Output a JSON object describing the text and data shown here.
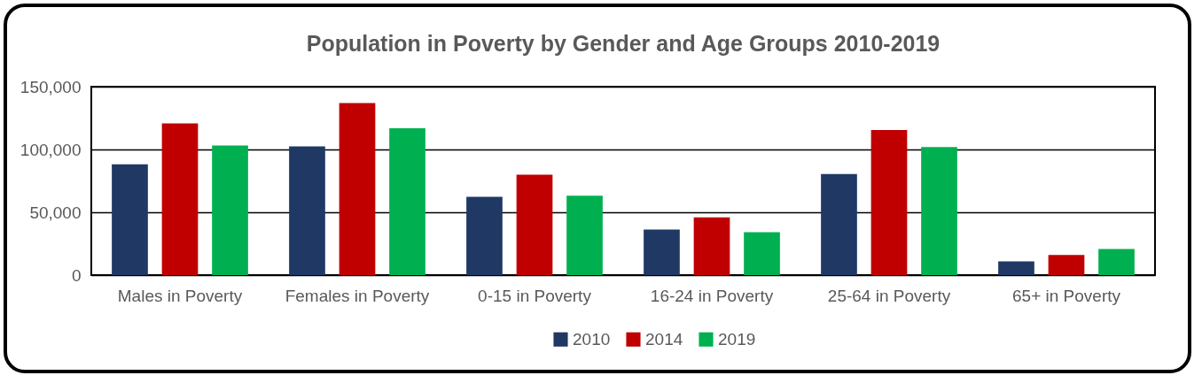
{
  "chart_data": {
    "type": "bar",
    "title": "Population in Poverty by Gender and Age Groups 2010-2019",
    "categories": [
      "Males in Poverty",
      "Females in Poverty",
      "0-15 in Poverty",
      "16-24 in Poverty",
      "25-64 in Poverty",
      "65+ in Poverty"
    ],
    "series": [
      {
        "name": "2010",
        "color": "#203864",
        "values": [
          88200,
          102400,
          62300,
          36200,
          80500,
          10900
        ]
      },
      {
        "name": "2014",
        "color": "#c00000",
        "values": [
          120800,
          136900,
          79900,
          46000,
          115500,
          16100
        ]
      },
      {
        "name": "2019",
        "color": "#00b050",
        "values": [
          103200,
          116900,
          63200,
          34200,
          102000,
          20700
        ]
      }
    ],
    "ylim": [
      0,
      150000
    ],
    "yticks": [
      0,
      {
        "value": 50000,
        "label": "50,000"
      },
      {
        "value": 100000,
        "label": "100,000"
      },
      {
        "value": 150000,
        "label": "150,000"
      }
    ],
    "grid": "y",
    "legend": "bottom"
  }
}
